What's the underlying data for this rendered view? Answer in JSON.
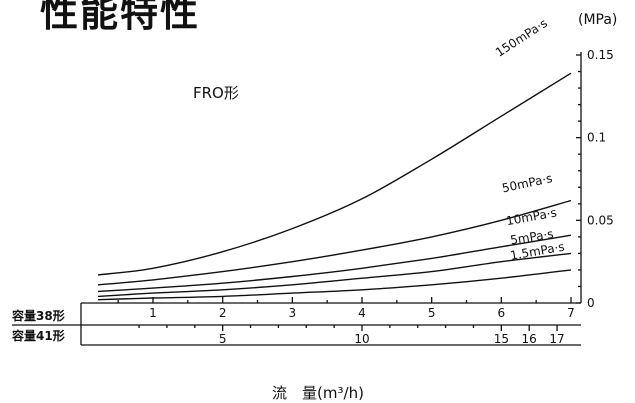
{
  "title": "性能特性",
  "chart_data": {
    "type": "line",
    "title": "性能特性",
    "annotation": "FRO形",
    "ylabel": "(MPa)",
    "xlabel": "流　量(m³/h)",
    "ylim": [
      0,
      0.15
    ],
    "y_ticks": [
      {
        "value": 0,
        "label": "0"
      },
      {
        "value": 0.05,
        "label": "0.05"
      },
      {
        "value": 0.1,
        "label": "0.1"
      },
      {
        "value": 0.15,
        "label": "0.15"
      }
    ],
    "x": [
      0.35,
      1,
      2,
      3,
      4,
      5,
      6,
      7
    ],
    "xlim": [
      0.35,
      7
    ],
    "x_axes": [
      {
        "label": "容量38形",
        "ticks": [
          {
            "value": 1,
            "label": "1"
          },
          {
            "value": 2,
            "label": "2"
          },
          {
            "value": 3,
            "label": "3"
          },
          {
            "value": 4,
            "label": "4"
          },
          {
            "value": 5,
            "label": "5"
          },
          {
            "value": 6,
            "label": "6"
          },
          {
            "value": 7,
            "label": "7"
          }
        ]
      },
      {
        "label": "容量41形",
        "ticks": [
          {
            "value": 2,
            "label": "5"
          },
          {
            "value": 4,
            "label": "10"
          },
          {
            "value": 6,
            "label": "15"
          },
          {
            "value": 6.4,
            "label": "16"
          },
          {
            "value": 6.8,
            "label": "17"
          }
        ]
      }
    ],
    "series": [
      {
        "name": "150mPa·s",
        "values": [
          0.017,
          0.021,
          0.031,
          0.045,
          0.063,
          0.087,
          0.113,
          0.139
        ]
      },
      {
        "name": "50mPa·s",
        "values": [
          0.011,
          0.014,
          0.019,
          0.025,
          0.032,
          0.04,
          0.05,
          0.062
        ]
      },
      {
        "name": "10mPa·s",
        "values": [
          0.007,
          0.009,
          0.012,
          0.016,
          0.021,
          0.027,
          0.034,
          0.041
        ]
      },
      {
        "name": "5mPa·s",
        "values": [
          0.004,
          0.006,
          0.008,
          0.011,
          0.015,
          0.019,
          0.025,
          0.03
        ]
      },
      {
        "name": "1.5mPa·s",
        "values": [
          0.002,
          0.003,
          0.004,
          0.006,
          0.008,
          0.011,
          0.015,
          0.02
        ]
      }
    ]
  }
}
